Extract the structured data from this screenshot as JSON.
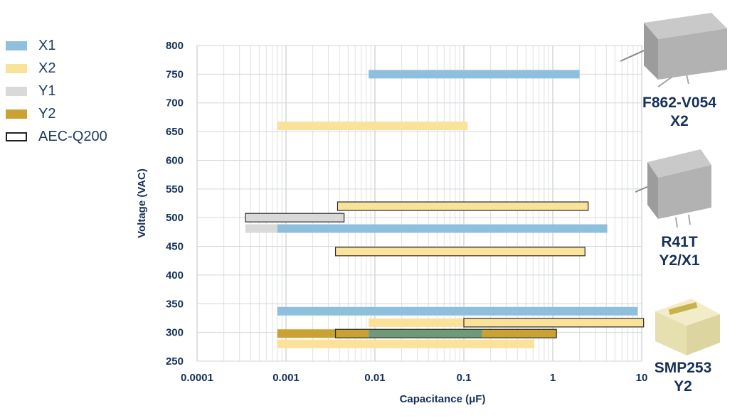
{
  "legend": {
    "items": [
      {
        "label": "X1",
        "color": "#8ec0de",
        "outline": false
      },
      {
        "label": "X2",
        "color": "#fbe29b",
        "outline": false
      },
      {
        "label": "Y1",
        "color": "#d9d9d9",
        "outline": false
      },
      {
        "label": "Y2",
        "color": "#c9a233",
        "outline": false
      },
      {
        "label": "AEC-Q200",
        "color": "#ffffff",
        "outline": true
      }
    ]
  },
  "products": [
    {
      "name": "F862-V054",
      "type": "X2"
    },
    {
      "name": "R41T",
      "type": "Y2/X1"
    },
    {
      "name": "SMP253",
      "type": "Y2"
    }
  ],
  "chart_data": {
    "type": "bar",
    "orientation": "horizontal-range",
    "xlabel": "Capacitance (μF)",
    "ylabel": "Voltage (VAC)",
    "xscale": "log",
    "xlim": [
      0.0001,
      10
    ],
    "ylim": [
      250,
      800
    ],
    "xticks": [
      "0.0001",
      "0.001",
      "0.01",
      "0.1",
      "1",
      "10"
    ],
    "yticks": [
      "250",
      "300",
      "350",
      "400",
      "450",
      "500",
      "550",
      "600",
      "650",
      "700",
      "750",
      "800"
    ],
    "grid": true,
    "legend_position": "left",
    "colors": {
      "X1": "#8ec0de",
      "X2": "#fbe29b",
      "Y1": "#d9d9d9",
      "Y2": "#c9a233",
      "X1+Y2": "#6f9a7a"
    },
    "ranges": [
      {
        "series": "X1",
        "voltage": 750,
        "cap_min": 0.0085,
        "cap_max": 2.0
      },
      {
        "series": "X2",
        "voltage": 660,
        "cap_min": 0.0008,
        "cap_max": 0.11
      },
      {
        "series": "X2",
        "voltage": 520,
        "cap_min": 0.0038,
        "cap_max": 2.5,
        "aec_q200": true
      },
      {
        "series": "Y1",
        "voltage": 500,
        "cap_min": 0.00035,
        "cap_max": 0.0045,
        "aec_q200": true
      },
      {
        "series": "Y1",
        "voltage": 481,
        "cap_min": 0.00035,
        "cap_max": 0.0008
      },
      {
        "series": "X1",
        "voltage": 481,
        "cap_min": 0.0008,
        "cap_max": 4.1
      },
      {
        "series": "X2",
        "voltage": 441,
        "cap_min": 0.0036,
        "cap_max": 2.3,
        "aec_q200": true
      },
      {
        "series": "X1",
        "voltage": 337,
        "cap_min": 0.0008,
        "cap_max": 9.0
      },
      {
        "series": "X2",
        "voltage": 317,
        "cap_min": 0.0085,
        "cap_max": 0.1
      },
      {
        "series": "X2",
        "voltage": 317,
        "cap_min": 0.1,
        "cap_max": 10.5,
        "aec_q200": true
      },
      {
        "series": "Y2",
        "voltage": 298,
        "cap_min": 0.0008,
        "cap_max": 0.0085
      },
      {
        "series": "X1+Y2",
        "voltage": 298,
        "cap_min": 0.0085,
        "cap_max": 0.16
      },
      {
        "series": "Y2",
        "voltage": 298,
        "cap_min": 0.16,
        "cap_max": 1.1
      },
      {
        "series": "Y2",
        "voltage": 298,
        "cap_min": 0.0036,
        "cap_max": 1.1,
        "aec_q200": true,
        "outline_only": true
      },
      {
        "series": "X2",
        "voltage": 280,
        "cap_min": 0.0008,
        "cap_max": 0.62
      }
    ]
  }
}
